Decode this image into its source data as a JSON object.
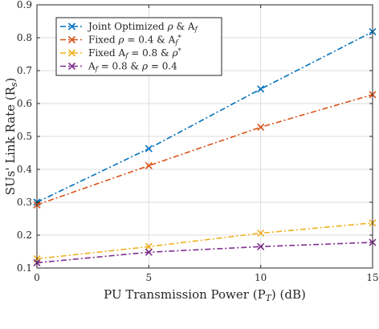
{
  "chart_data": {
    "type": "line",
    "title": "",
    "xlabel": "PU Transmission Power (P_T) (dB)",
    "ylabel": "SUs' Link Rate (R_s)",
    "xlim": [
      0,
      15
    ],
    "ylim": [
      0.1,
      0.9
    ],
    "xticks": [
      0,
      5,
      10,
      15
    ],
    "yticks": [
      0.1,
      0.2,
      0.3,
      0.4,
      0.5,
      0.6,
      0.7,
      0.8,
      0.9
    ],
    "grid": true,
    "legend_position": "top-left",
    "x": [
      0,
      5,
      10,
      15
    ],
    "series": [
      {
        "name": "Joint Optimized ρ & A_f",
        "values": [
          0.3,
          0.463,
          0.644,
          0.818
        ],
        "color": "#0072BD",
        "marker": "x",
        "linestyle": "dash-dot"
      },
      {
        "name": "Fixed ρ = 0.4 & A_f*",
        "values": [
          0.292,
          0.411,
          0.528,
          0.627
        ],
        "color": "#D95319",
        "marker": "x",
        "linestyle": "dash-dot"
      },
      {
        "name": "Fixed A_f = 0.8 & ρ*",
        "values": [
          0.128,
          0.165,
          0.206,
          0.237
        ],
        "color": "#EDB120",
        "marker": "x",
        "linestyle": "dash-dot"
      },
      {
        "name": "A_f = 0.8 & ρ = 0.4",
        "values": [
          0.116,
          0.148,
          0.165,
          0.178
        ],
        "color": "#7E2F8E",
        "marker": "x",
        "linestyle": "dash-dot"
      }
    ]
  }
}
